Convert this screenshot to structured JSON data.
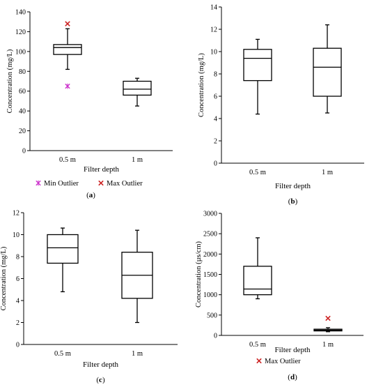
{
  "chart_data": [
    {
      "type": "boxplot",
      "panel_label": "(a)",
      "xlabel": "Filter depth",
      "ylabel": "Concentration (mg/L)",
      "ylim": [
        0,
        140
      ],
      "yticks": [
        0,
        20,
        40,
        60,
        80,
        100,
        120,
        140
      ],
      "categories": [
        "0.5 m",
        "1 m"
      ],
      "boxes": [
        {
          "min": 82,
          "q1": 97,
          "median": 104,
          "q3": 107,
          "max": 123
        },
        {
          "min": 45,
          "q1": 56,
          "median": 62,
          "q3": 70,
          "max": 73
        }
      ],
      "outliers": [
        {
          "category": 0,
          "value": 65,
          "kind": "min"
        },
        {
          "category": 0,
          "value": 128,
          "kind": "max"
        }
      ],
      "legend": [
        {
          "label": "Min Outlier",
          "kind": "min",
          "color": "#cc33cc"
        },
        {
          "label": "Max Outlier",
          "kind": "max",
          "color": "#cc2222"
        }
      ]
    },
    {
      "type": "boxplot",
      "panel_label": "(b)",
      "xlabel": "Filter depth",
      "ylabel": "Concentration (mg/L)",
      "ylim": [
        0,
        14
      ],
      "yticks": [
        0,
        2,
        4,
        6,
        8,
        10,
        12,
        14
      ],
      "categories": [
        "0.5 m",
        "1 m"
      ],
      "boxes": [
        {
          "min": 4.4,
          "q1": 7.4,
          "median": 9.4,
          "q3": 10.2,
          "max": 11.1
        },
        {
          "min": 4.5,
          "q1": 6.0,
          "median": 8.6,
          "q3": 10.3,
          "max": 12.4
        }
      ],
      "outliers": [],
      "legend": []
    },
    {
      "type": "boxplot",
      "panel_label": "(c)",
      "xlabel": "Filter depth",
      "ylabel": "Concentration (mg/L)",
      "ylim": [
        0,
        12
      ],
      "yticks": [
        0,
        2,
        4,
        6,
        8,
        10,
        12
      ],
      "categories": [
        "0.5 m",
        "1 m"
      ],
      "boxes": [
        {
          "min": 4.8,
          "q1": 7.4,
          "median": 8.8,
          "q3": 10.0,
          "max": 10.6
        },
        {
          "min": 2.0,
          "q1": 4.2,
          "median": 6.3,
          "q3": 8.4,
          "max": 10.4
        }
      ],
      "outliers": [],
      "legend": []
    },
    {
      "type": "boxplot",
      "panel_label": "(d)",
      "xlabel": "Filter depth",
      "ylabel": "Concentration (µs/cm)",
      "ylim": [
        0,
        3000
      ],
      "yticks": [
        0,
        500,
        1000,
        1500,
        2000,
        2500,
        3000
      ],
      "categories": [
        "0.5 m",
        "1 m"
      ],
      "boxes": [
        {
          "min": 900,
          "q1": 1000,
          "median": 1140,
          "q3": 1700,
          "max": 2400
        },
        {
          "min": 90,
          "q1": 110,
          "median": 130,
          "q3": 150,
          "max": 190
        }
      ],
      "outliers": [
        {
          "category": 1,
          "value": 420,
          "kind": "max"
        }
      ],
      "legend": [
        {
          "label": "Max Outlier",
          "kind": "max",
          "color": "#cc2222"
        }
      ]
    }
  ]
}
